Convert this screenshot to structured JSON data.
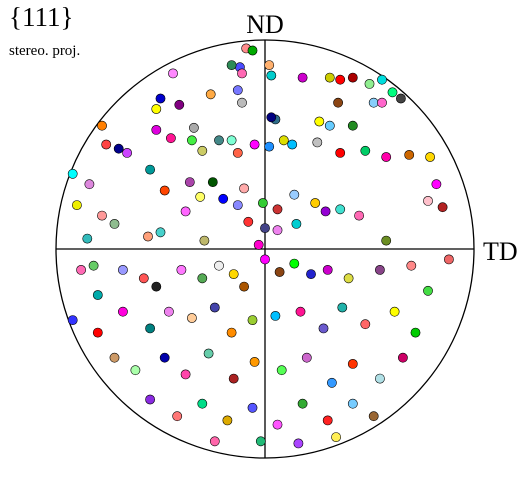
{
  "chart_data": {
    "type": "scatter",
    "projection": "stereographic",
    "title": "{111}",
    "subtitle": "stereo. proj.",
    "axis_labels": {
      "vertical": "ND",
      "horizontal": "TD"
    },
    "xlim": [
      -1,
      1
    ],
    "ylim": [
      -1,
      1
    ],
    "grid": false,
    "marker": "circle",
    "points": [
      {
        "x": -0.09,
        "y": 0.96,
        "color": "#ff8c8c"
      },
      {
        "x": -0.06,
        "y": 0.95,
        "color": "#00aa00"
      },
      {
        "x": 0.02,
        "y": 0.88,
        "color": "#ffb06e"
      },
      {
        "x": -0.12,
        "y": 0.87,
        "color": "#4b4bff"
      },
      {
        "x": -0.16,
        "y": 0.88,
        "color": "#2e8b57"
      },
      {
        "x": -0.11,
        "y": 0.84,
        "color": "#ff69b4"
      },
      {
        "x": -0.44,
        "y": 0.84,
        "color": "#ff88ff"
      },
      {
        "x": 0.03,
        "y": 0.83,
        "color": "#00cccc"
      },
      {
        "x": 0.18,
        "y": 0.82,
        "color": "#cc00cc"
      },
      {
        "x": 0.31,
        "y": 0.82,
        "color": "#cccc00"
      },
      {
        "x": 0.36,
        "y": 0.81,
        "color": "#ff0000"
      },
      {
        "x": 0.42,
        "y": 0.82,
        "color": "#aa0000"
      },
      {
        "x": 0.56,
        "y": 0.81,
        "color": "#00dddd"
      },
      {
        "x": 0.5,
        "y": 0.79,
        "color": "#90ee90"
      },
      {
        "x": 0.61,
        "y": 0.75,
        "color": "#00ff7f"
      },
      {
        "x": 0.65,
        "y": 0.72,
        "color": "#444444"
      },
      {
        "x": -0.13,
        "y": 0.76,
        "color": "#7777ff"
      },
      {
        "x": -0.26,
        "y": 0.74,
        "color": "#ffaa44"
      },
      {
        "x": -0.5,
        "y": 0.72,
        "color": "#0000cc"
      },
      {
        "x": -0.41,
        "y": 0.69,
        "color": "#800080"
      },
      {
        "x": -0.52,
        "y": 0.67,
        "color": "#ffff00"
      },
      {
        "x": -0.11,
        "y": 0.7,
        "color": "#bbbbbb"
      },
      {
        "x": 0.05,
        "y": 0.62,
        "color": "#2e6d8b"
      },
      {
        "x": 0.35,
        "y": 0.7,
        "color": "#8b4513"
      },
      {
        "x": 0.52,
        "y": 0.7,
        "color": "#87cefa"
      },
      {
        "x": 0.56,
        "y": 0.7,
        "color": "#ff66cc"
      },
      {
        "x": 0.03,
        "y": 0.63,
        "color": "#000080"
      },
      {
        "x": 0.26,
        "y": 0.61,
        "color": "#ffff00"
      },
      {
        "x": 0.31,
        "y": 0.59,
        "color": "#66ccff"
      },
      {
        "x": 0.42,
        "y": 0.59,
        "color": "#228b22"
      },
      {
        "x": -0.78,
        "y": 0.59,
        "color": "#ff7f00"
      },
      {
        "x": -0.76,
        "y": 0.5,
        "color": "#ff4444"
      },
      {
        "x": -0.7,
        "y": 0.48,
        "color": "#00008b"
      },
      {
        "x": -0.66,
        "y": 0.46,
        "color": "#cc44ff"
      },
      {
        "x": -0.52,
        "y": 0.57,
        "color": "#dd00dd"
      },
      {
        "x": -0.34,
        "y": 0.58,
        "color": "#aaaaaa"
      },
      {
        "x": -0.35,
        "y": 0.52,
        "color": "#44ee44"
      },
      {
        "x": -0.45,
        "y": 0.53,
        "color": "#ff1493"
      },
      {
        "x": -0.3,
        "y": 0.47,
        "color": "#cccc66"
      },
      {
        "x": -0.22,
        "y": 0.52,
        "color": "#448888"
      },
      {
        "x": -0.16,
        "y": 0.52,
        "color": "#7fffd4"
      },
      {
        "x": -0.13,
        "y": 0.46,
        "color": "#ff6347"
      },
      {
        "x": -0.05,
        "y": 0.5,
        "color": "#ff00ff"
      },
      {
        "x": 0.02,
        "y": 0.49,
        "color": "#1e90ff"
      },
      {
        "x": 0.09,
        "y": 0.52,
        "color": "#dddd00"
      },
      {
        "x": 0.13,
        "y": 0.5,
        "color": "#00bfff"
      },
      {
        "x": 0.25,
        "y": 0.51,
        "color": "#c0c0c0"
      },
      {
        "x": 0.36,
        "y": 0.46,
        "color": "#ff0000"
      },
      {
        "x": 0.48,
        "y": 0.47,
        "color": "#00cc66"
      },
      {
        "x": 0.58,
        "y": 0.44,
        "color": "#ff00aa"
      },
      {
        "x": 0.69,
        "y": 0.45,
        "color": "#cc6600"
      },
      {
        "x": 0.79,
        "y": 0.44,
        "color": "#ffd700"
      },
      {
        "x": 0.82,
        "y": 0.31,
        "color": "#ff00ff"
      },
      {
        "x": 0.78,
        "y": 0.23,
        "color": "#ffc0cb"
      },
      {
        "x": 0.85,
        "y": 0.2,
        "color": "#b22222"
      },
      {
        "x": -0.92,
        "y": 0.36,
        "color": "#00ffff"
      },
      {
        "x": -0.84,
        "y": 0.31,
        "color": "#dd88dd"
      },
      {
        "x": -0.9,
        "y": 0.21,
        "color": "#eeee00"
      },
      {
        "x": -0.78,
        "y": 0.16,
        "color": "#ff9999"
      },
      {
        "x": -0.72,
        "y": 0.12,
        "color": "#8fbc8f"
      },
      {
        "x": -0.55,
        "y": 0.38,
        "color": "#009999"
      },
      {
        "x": -0.48,
        "y": 0.28,
        "color": "#ff4500"
      },
      {
        "x": -0.36,
        "y": 0.32,
        "color": "#aa44aa"
      },
      {
        "x": -0.25,
        "y": 0.32,
        "color": "#005500"
      },
      {
        "x": -0.31,
        "y": 0.25,
        "color": "#ffff66"
      },
      {
        "x": -0.38,
        "y": 0.18,
        "color": "#ff66ff"
      },
      {
        "x": -0.2,
        "y": 0.24,
        "color": "#0000ff"
      },
      {
        "x": -0.1,
        "y": 0.29,
        "color": "#ffaaaa"
      },
      {
        "x": -0.13,
        "y": 0.21,
        "color": "#8888ff"
      },
      {
        "x": -0.01,
        "y": 0.22,
        "color": "#33cc33"
      },
      {
        "x": 0.06,
        "y": 0.19,
        "color": "#cc3333"
      },
      {
        "x": 0.14,
        "y": 0.26,
        "color": "#99ccff"
      },
      {
        "x": 0.24,
        "y": 0.22,
        "color": "#ffcc00"
      },
      {
        "x": 0.29,
        "y": 0.18,
        "color": "#9400d3"
      },
      {
        "x": 0.36,
        "y": 0.19,
        "color": "#40e0d0"
      },
      {
        "x": 0.45,
        "y": 0.16,
        "color": "#ff69b4"
      },
      {
        "x": 0.58,
        "y": 0.04,
        "color": "#6b8e23"
      },
      {
        "x": -0.08,
        "y": 0.13,
        "color": "#ff3333"
      },
      {
        "x": 0.0,
        "y": 0.1,
        "color": "#444488"
      },
      {
        "x": 0.06,
        "y": 0.09,
        "color": "#ee82ee"
      },
      {
        "x": 0.15,
        "y": 0.12,
        "color": "#00ced1"
      },
      {
        "x": -0.56,
        "y": 0.06,
        "color": "#ffa07a"
      },
      {
        "x": -0.5,
        "y": 0.08,
        "color": "#48d1cc"
      },
      {
        "x": -0.29,
        "y": 0.04,
        "color": "#bdb76b"
      },
      {
        "x": -0.03,
        "y": 0.02,
        "color": "#ff00cc"
      },
      {
        "x": -0.88,
        "y": -0.1,
        "color": "#ff69b4"
      },
      {
        "x": -0.82,
        "y": -0.08,
        "color": "#66cc66"
      },
      {
        "x": -0.8,
        "y": -0.22,
        "color": "#00aaaa"
      },
      {
        "x": -0.68,
        "y": -0.1,
        "color": "#9999ff"
      },
      {
        "x": -0.58,
        "y": -0.14,
        "color": "#ff5555"
      },
      {
        "x": -0.52,
        "y": -0.18,
        "color": "#222222"
      },
      {
        "x": -0.4,
        "y": -0.1,
        "color": "#ff77ff"
      },
      {
        "x": -0.3,
        "y": -0.14,
        "color": "#55aa55"
      },
      {
        "x": -0.22,
        "y": -0.08,
        "color": "#eeeeee"
      },
      {
        "x": -0.15,
        "y": -0.12,
        "color": "#ffd700"
      },
      {
        "x": -0.1,
        "y": -0.18,
        "color": "#aa5500"
      },
      {
        "x": 0.0,
        "y": -0.05,
        "color": "#ff00ff"
      },
      {
        "x": 0.07,
        "y": -0.11,
        "color": "#8b4513"
      },
      {
        "x": 0.14,
        "y": -0.07,
        "color": "#00ff00"
      },
      {
        "x": 0.22,
        "y": -0.12,
        "color": "#2222cc"
      },
      {
        "x": 0.3,
        "y": -0.1,
        "color": "#cc00cc"
      },
      {
        "x": 0.4,
        "y": -0.14,
        "color": "#dddd44"
      },
      {
        "x": 0.55,
        "y": -0.1,
        "color": "#884488"
      },
      {
        "x": 0.7,
        "y": -0.08,
        "color": "#ff8888"
      },
      {
        "x": 0.78,
        "y": -0.2,
        "color": "#44dd44"
      },
      {
        "x": -0.92,
        "y": -0.34,
        "color": "#3333ff"
      },
      {
        "x": -0.8,
        "y": -0.4,
        "color": "#ff0000"
      },
      {
        "x": -0.68,
        "y": -0.3,
        "color": "#ff00dd"
      },
      {
        "x": -0.55,
        "y": -0.38,
        "color": "#008080"
      },
      {
        "x": -0.46,
        "y": -0.3,
        "color": "#ee82ee"
      },
      {
        "x": -0.35,
        "y": -0.33,
        "color": "#ffcc99"
      },
      {
        "x": -0.24,
        "y": -0.28,
        "color": "#4444aa"
      },
      {
        "x": -0.16,
        "y": -0.4,
        "color": "#ff8c00"
      },
      {
        "x": -0.06,
        "y": -0.34,
        "color": "#9acd32"
      },
      {
        "x": 0.05,
        "y": -0.32,
        "color": "#00bfff"
      },
      {
        "x": 0.17,
        "y": -0.3,
        "color": "#ff1493"
      },
      {
        "x": 0.28,
        "y": -0.38,
        "color": "#6a5acd"
      },
      {
        "x": 0.37,
        "y": -0.28,
        "color": "#20b2aa"
      },
      {
        "x": 0.48,
        "y": -0.36,
        "color": "#ff6666"
      },
      {
        "x": 0.62,
        "y": -0.3,
        "color": "#ffff00"
      },
      {
        "x": 0.72,
        "y": -0.4,
        "color": "#00cc00"
      },
      {
        "x": -0.72,
        "y": -0.52,
        "color": "#cc9966"
      },
      {
        "x": -0.62,
        "y": -0.58,
        "color": "#aaffaa"
      },
      {
        "x": -0.48,
        "y": -0.52,
        "color": "#0000aa"
      },
      {
        "x": -0.38,
        "y": -0.6,
        "color": "#ff44aa"
      },
      {
        "x": -0.27,
        "y": -0.5,
        "color": "#66cdaa"
      },
      {
        "x": -0.15,
        "y": -0.62,
        "color": "#aa2222"
      },
      {
        "x": -0.05,
        "y": -0.54,
        "color": "#ff9900"
      },
      {
        "x": 0.08,
        "y": -0.58,
        "color": "#55ff55"
      },
      {
        "x": 0.2,
        "y": -0.52,
        "color": "#cc66cc"
      },
      {
        "x": 0.32,
        "y": -0.64,
        "color": "#3399ff"
      },
      {
        "x": 0.42,
        "y": -0.55,
        "color": "#ff3300"
      },
      {
        "x": 0.55,
        "y": -0.62,
        "color": "#b0e0e6"
      },
      {
        "x": 0.66,
        "y": -0.52,
        "color": "#cc0066"
      },
      {
        "x": -0.55,
        "y": -0.72,
        "color": "#8a2be2"
      },
      {
        "x": -0.42,
        "y": -0.8,
        "color": "#ff7777"
      },
      {
        "x": -0.3,
        "y": -0.74,
        "color": "#00dd88"
      },
      {
        "x": -0.18,
        "y": -0.82,
        "color": "#ddaa00"
      },
      {
        "x": -0.06,
        "y": -0.76,
        "color": "#5555ff"
      },
      {
        "x": 0.06,
        "y": -0.84,
        "color": "#ff55ff"
      },
      {
        "x": 0.18,
        "y": -0.74,
        "color": "#33aa33"
      },
      {
        "x": 0.3,
        "y": -0.82,
        "color": "#ff2222"
      },
      {
        "x": 0.42,
        "y": -0.74,
        "color": "#77ccff"
      },
      {
        "x": 0.52,
        "y": -0.8,
        "color": "#996633"
      },
      {
        "x": -0.24,
        "y": -0.92,
        "color": "#ff66aa"
      },
      {
        "x": -0.02,
        "y": -0.92,
        "color": "#22bb77"
      },
      {
        "x": 0.16,
        "y": -0.93,
        "color": "#aa44ff"
      },
      {
        "x": 0.34,
        "y": -0.9,
        "color": "#ffee55"
      },
      {
        "x": -0.85,
        "y": 0.05,
        "color": "#33bbbb"
      },
      {
        "x": 0.88,
        "y": -0.05,
        "color": "#ee6666"
      }
    ]
  }
}
